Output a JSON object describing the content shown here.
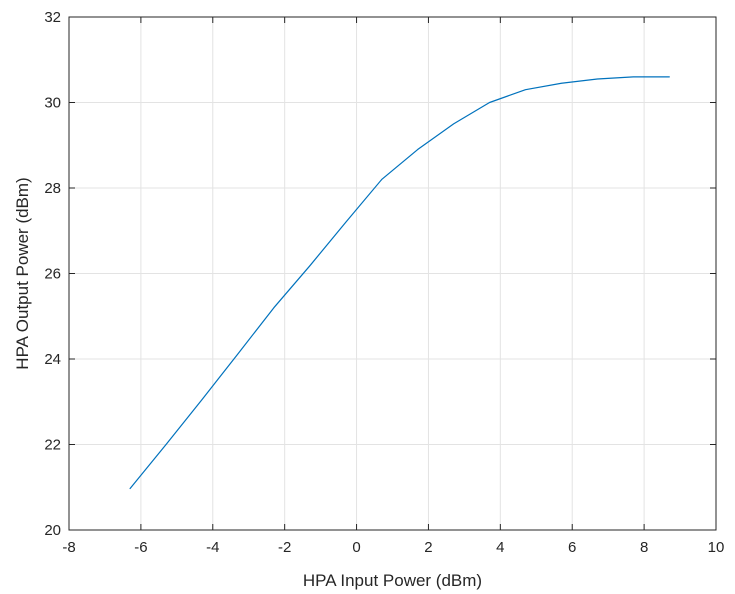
{
  "chart_data": {
    "type": "line",
    "title": "",
    "xlabel": "HPA Input Power (dBm)",
    "ylabel": "HPA Output Power (dBm)",
    "xlim": [
      -8,
      10
    ],
    "ylim": [
      20,
      32
    ],
    "xticks": [
      -8,
      -6,
      -4,
      -2,
      0,
      2,
      4,
      6,
      8,
      10
    ],
    "yticks": [
      20,
      22,
      24,
      26,
      28,
      30,
      32
    ],
    "grid": true,
    "series": [
      {
        "color": "#0072bd",
        "x": [
          -6.3,
          -5.3,
          -4.3,
          -3.3,
          -2.3,
          -1.3,
          -0.3,
          0.7,
          1.7,
          2.7,
          3.7,
          4.7,
          5.7,
          6.7,
          7.7,
          8.7
        ],
        "y": [
          20.97,
          22.0,
          23.05,
          24.12,
          25.2,
          26.18,
          27.2,
          28.2,
          28.9,
          29.5,
          30.0,
          30.3,
          30.45,
          30.55,
          30.6,
          30.6
        ]
      }
    ]
  }
}
